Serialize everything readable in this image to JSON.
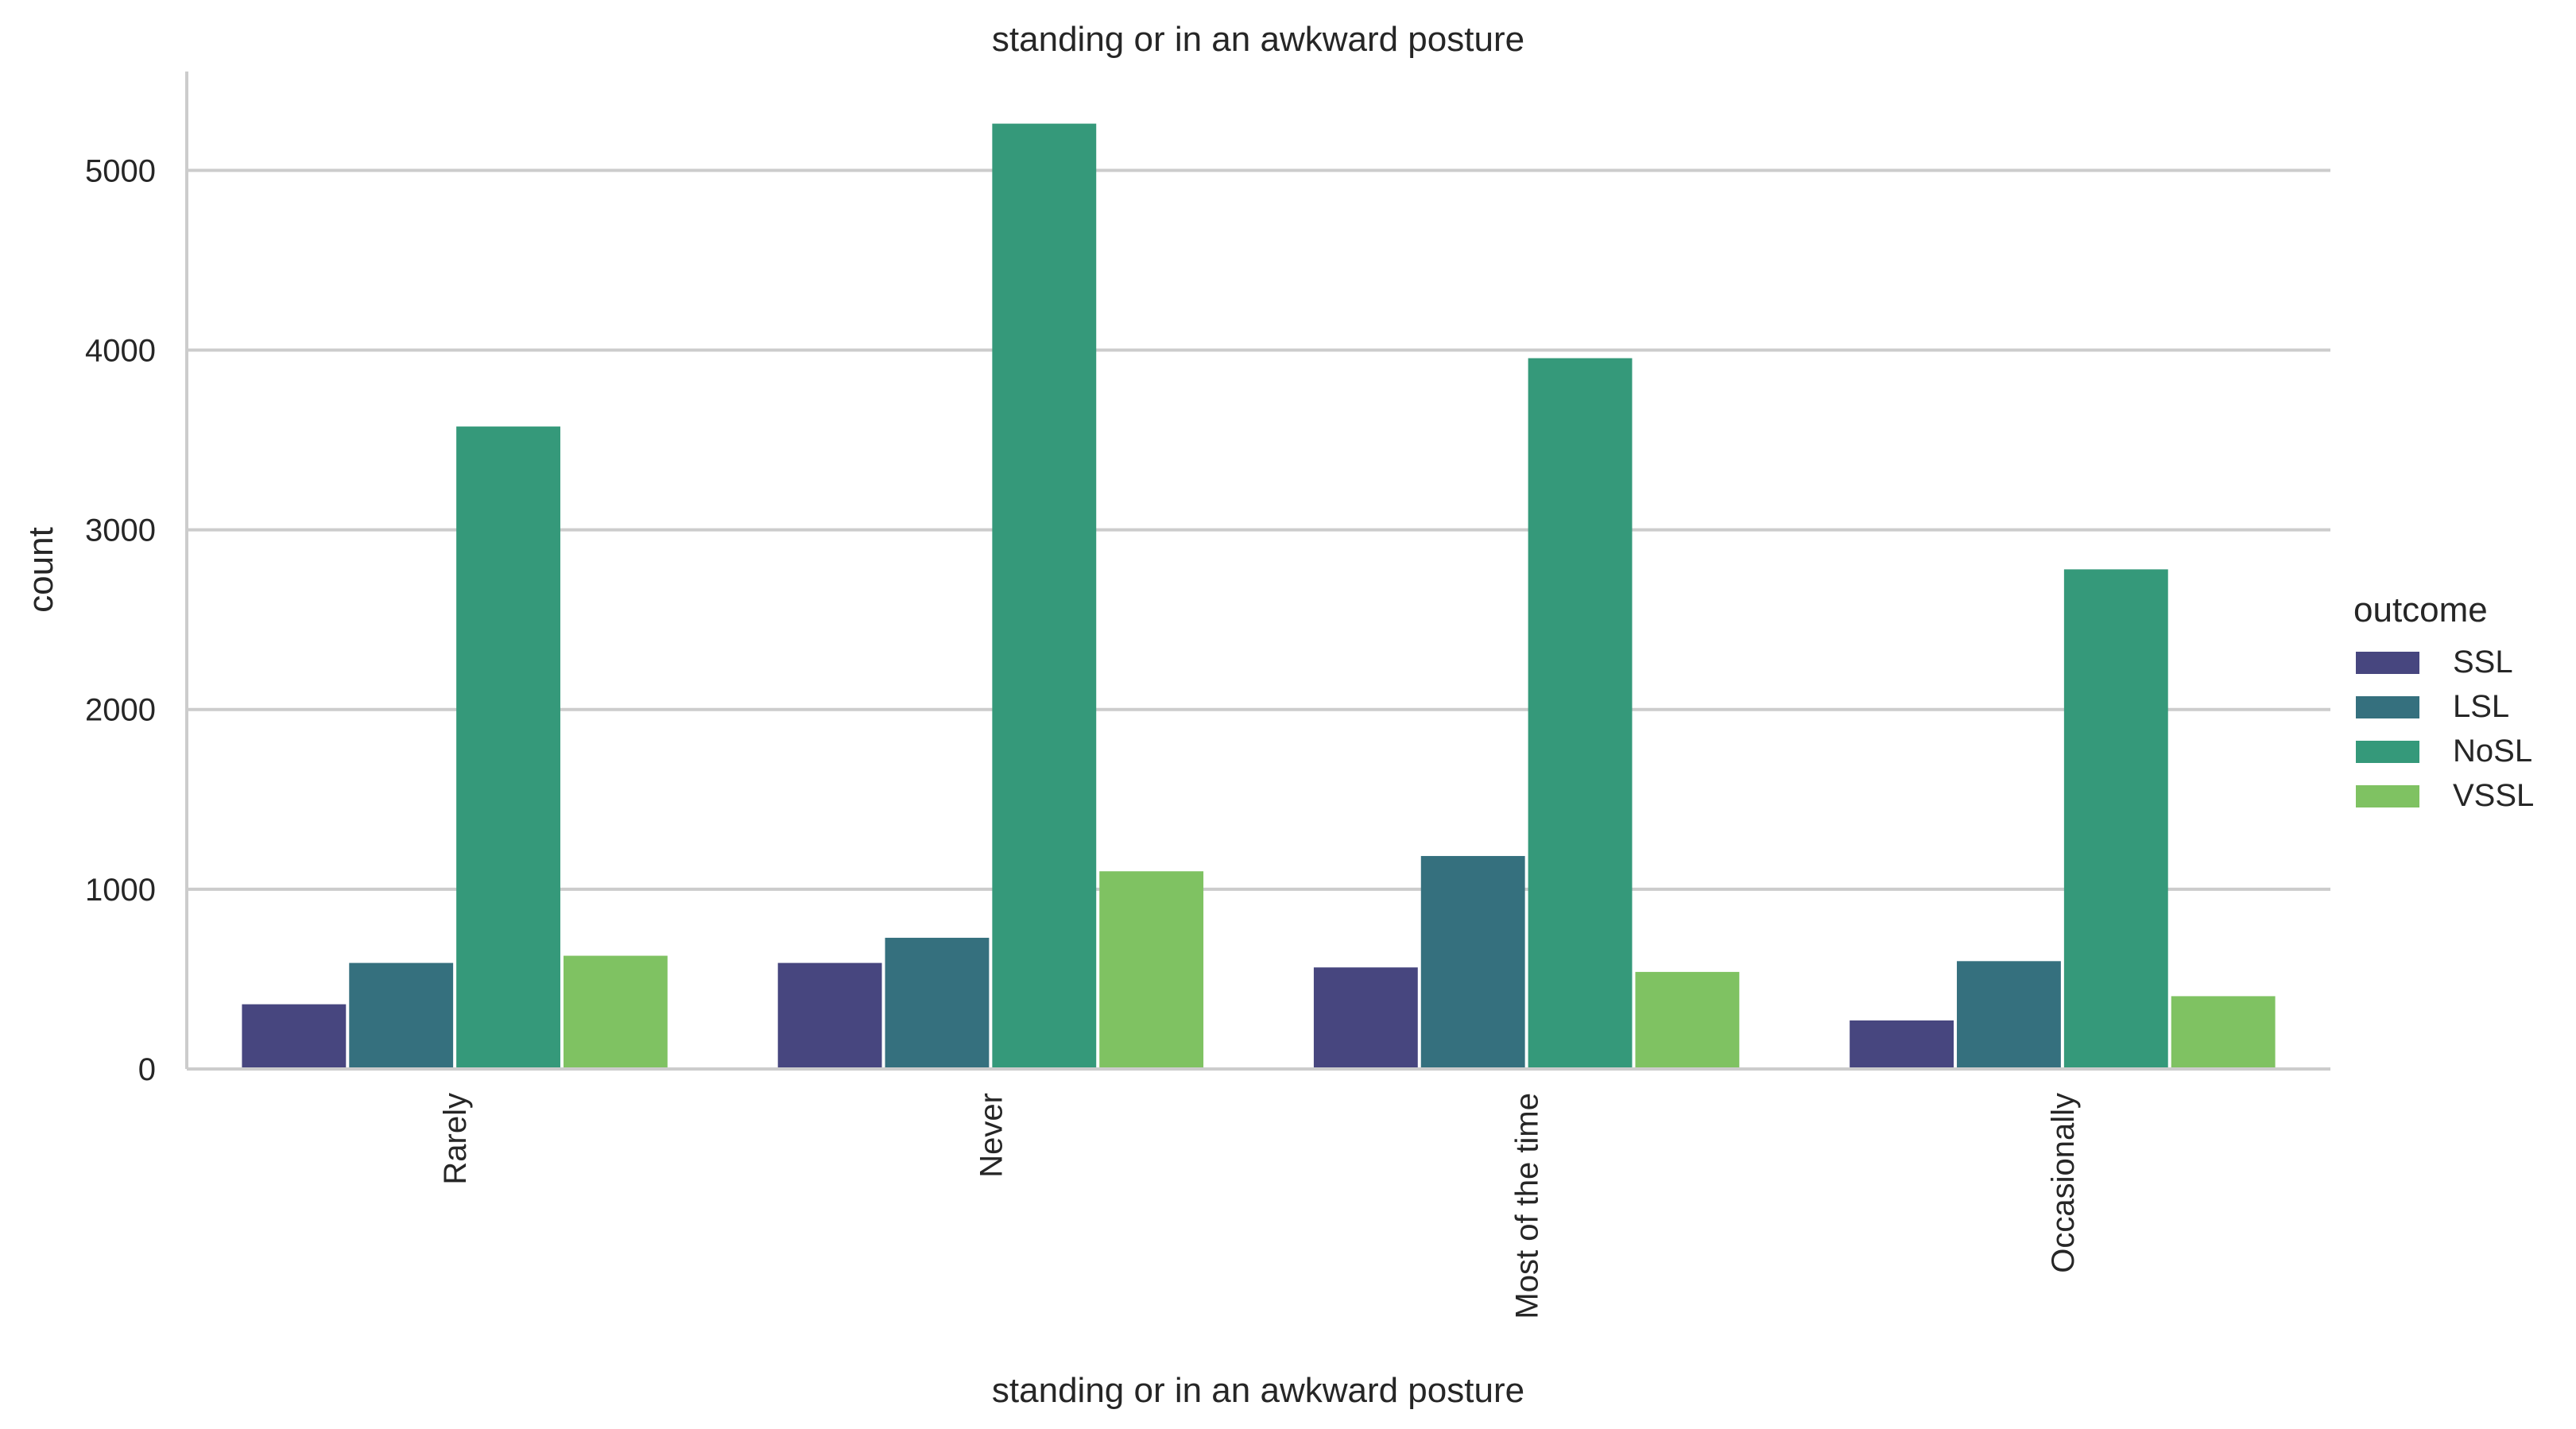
{
  "chart_data": {
    "type": "bar",
    "title": "standing or in an awkward posture",
    "xlabel": "standing or in an awkward posture",
    "ylabel": "count",
    "categories": [
      "Rarely",
      "Never",
      "Most of the time",
      "Occasionally"
    ],
    "series": [
      {
        "name": "SSL",
        "color": "#47467f",
        "values": [
          360,
          590,
          565,
          270
        ]
      },
      {
        "name": "LSL",
        "color": "#35707e",
        "values": [
          590,
          730,
          1185,
          600
        ]
      },
      {
        "name": "NoSL",
        "color": "#35997a",
        "values": [
          3575,
          5260,
          3955,
          2780
        ]
      },
      {
        "name": "VSSL",
        "color": "#7fc262",
        "values": [
          630,
          1100,
          540,
          405
        ]
      }
    ],
    "yticks": [
      0,
      1000,
      2000,
      3000,
      4000,
      5000
    ],
    "ylim": [
      0,
      5550
    ],
    "grid": "horizontal",
    "legend": {
      "title": "outcome",
      "placement": "right"
    }
  }
}
